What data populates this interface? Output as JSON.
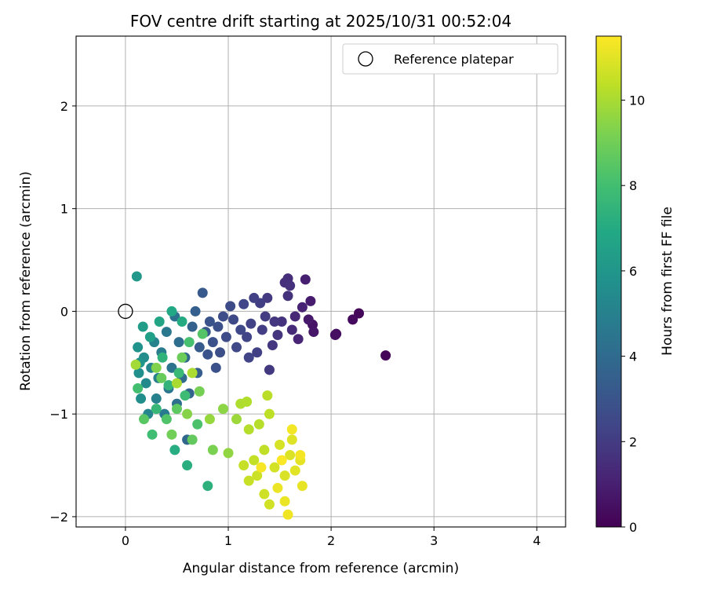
{
  "chart_data": {
    "type": "scatter",
    "title": "FOV centre drift starting at 2025/10/31 00:52:04",
    "xlabel": "Angular distance from reference (arcmin)",
    "ylabel": "Rotation from reference (arcmin)",
    "xlim": [
      -0.48,
      4.28
    ],
    "ylim": [
      -2.1,
      2.68
    ],
    "xticks": [
      "0",
      "1",
      "2",
      "3",
      "4"
    ],
    "yticks": [
      "−2",
      "−1",
      "0",
      "1",
      "2"
    ],
    "grid": true,
    "legend": {
      "position": "top-right",
      "entries": [
        "Reference platepar"
      ]
    },
    "reference_point": {
      "x": 0,
      "y": 0,
      "name": "Reference platepar"
    },
    "colorbar": {
      "label": "Hours from first FF file",
      "colormap": "viridis",
      "range": [
        0,
        11.5
      ],
      "ticks": [
        "0",
        "2",
        "4",
        "6",
        "8",
        "10"
      ]
    },
    "points": [
      {
        "x": 2.53,
        "y": -0.43,
        "h": 0.1
      },
      {
        "x": 2.27,
        "y": -0.02,
        "h": 0.2
      },
      {
        "x": 2.21,
        "y": -0.08,
        "h": 0.3
      },
      {
        "x": 2.05,
        "y": -0.22,
        "h": 0.4
      },
      {
        "x": 2.04,
        "y": -0.23,
        "h": 0.45
      },
      {
        "x": 1.82,
        "y": -0.13,
        "h": 0.6
      },
      {
        "x": 1.83,
        "y": -0.2,
        "h": 0.7
      },
      {
        "x": 1.78,
        "y": -0.08,
        "h": 0.8
      },
      {
        "x": 1.8,
        "y": 0.1,
        "h": 0.9
      },
      {
        "x": 1.75,
        "y": 0.31,
        "h": 1.0
      },
      {
        "x": 1.72,
        "y": 0.04,
        "h": 1.1
      },
      {
        "x": 1.68,
        "y": -0.27,
        "h": 1.2
      },
      {
        "x": 1.65,
        "y": -0.05,
        "h": 1.3
      },
      {
        "x": 1.62,
        "y": -0.18,
        "h": 1.4
      },
      {
        "x": 1.58,
        "y": 0.32,
        "h": 1.5
      },
      {
        "x": 1.55,
        "y": 0.28,
        "h": 1.55
      },
      {
        "x": 1.6,
        "y": 0.25,
        "h": 1.6
      },
      {
        "x": 1.58,
        "y": 0.15,
        "h": 1.65
      },
      {
        "x": 1.52,
        "y": -0.1,
        "h": 1.7
      },
      {
        "x": 1.48,
        "y": -0.23,
        "h": 1.75
      },
      {
        "x": 1.45,
        "y": -0.1,
        "h": 1.8
      },
      {
        "x": 1.43,
        "y": -0.33,
        "h": 1.85
      },
      {
        "x": 1.4,
        "y": -0.57,
        "h": 1.9
      },
      {
        "x": 1.38,
        "y": 0.13,
        "h": 1.95
      },
      {
        "x": 1.36,
        "y": -0.05,
        "h": 2.0
      },
      {
        "x": 1.33,
        "y": -0.18,
        "h": 2.05
      },
      {
        "x": 1.31,
        "y": 0.08,
        "h": 2.1
      },
      {
        "x": 1.28,
        "y": -0.4,
        "h": 2.15
      },
      {
        "x": 1.25,
        "y": 0.13,
        "h": 2.2
      },
      {
        "x": 1.22,
        "y": -0.12,
        "h": 2.25
      },
      {
        "x": 1.2,
        "y": -0.45,
        "h": 2.3
      },
      {
        "x": 1.18,
        "y": -0.25,
        "h": 2.35
      },
      {
        "x": 1.15,
        "y": 0.07,
        "h": 2.4
      },
      {
        "x": 1.12,
        "y": -0.18,
        "h": 2.45
      },
      {
        "x": 1.08,
        "y": -0.35,
        "h": 2.5
      },
      {
        "x": 1.05,
        "y": -0.08,
        "h": 2.55
      },
      {
        "x": 1.02,
        "y": 0.05,
        "h": 2.6
      },
      {
        "x": 0.98,
        "y": -0.25,
        "h": 2.65
      },
      {
        "x": 0.95,
        "y": -0.05,
        "h": 2.7
      },
      {
        "x": 0.92,
        "y": -0.4,
        "h": 2.75
      },
      {
        "x": 0.9,
        "y": -0.15,
        "h": 2.8
      },
      {
        "x": 0.88,
        "y": -0.55,
        "h": 2.85
      },
      {
        "x": 0.85,
        "y": -0.3,
        "h": 2.9
      },
      {
        "x": 0.82,
        "y": -0.1,
        "h": 2.95
      },
      {
        "x": 0.8,
        "y": -0.42,
        "h": 3.0
      },
      {
        "x": 0.78,
        "y": -0.2,
        "h": 3.1
      },
      {
        "x": 0.75,
        "y": 0.18,
        "h": 3.2
      },
      {
        "x": 0.72,
        "y": -0.35,
        "h": 3.3
      },
      {
        "x": 0.7,
        "y": -0.6,
        "h": 3.4
      },
      {
        "x": 0.68,
        "y": 0.0,
        "h": 3.5
      },
      {
        "x": 0.65,
        "y": -0.15,
        "h": 3.6
      },
      {
        "x": 0.62,
        "y": -0.8,
        "h": 3.7
      },
      {
        "x": 0.6,
        "y": -1.25,
        "h": 3.8
      },
      {
        "x": 0.58,
        "y": -0.45,
        "h": 3.9
      },
      {
        "x": 0.55,
        "y": -0.65,
        "h": 4.0
      },
      {
        "x": 0.52,
        "y": -0.3,
        "h": 4.1
      },
      {
        "x": 0.5,
        "y": -0.9,
        "h": 4.2
      },
      {
        "x": 0.48,
        "y": -0.05,
        "h": 4.3
      },
      {
        "x": 0.45,
        "y": -0.55,
        "h": 4.4
      },
      {
        "x": 0.42,
        "y": -0.75,
        "h": 4.5
      },
      {
        "x": 0.4,
        "y": -0.2,
        "h": 4.6
      },
      {
        "x": 0.38,
        "y": -1.0,
        "h": 4.7
      },
      {
        "x": 0.35,
        "y": -0.4,
        "h": 4.8
      },
      {
        "x": 0.32,
        "y": -0.65,
        "h": 4.9
      },
      {
        "x": 0.3,
        "y": -0.85,
        "h": 5.0
      },
      {
        "x": 0.28,
        "y": -0.3,
        "h": 5.1
      },
      {
        "x": 0.25,
        "y": -0.55,
        "h": 5.2
      },
      {
        "x": 0.22,
        "y": -1.0,
        "h": 5.3
      },
      {
        "x": 0.2,
        "y": -0.7,
        "h": 5.4
      },
      {
        "x": 0.18,
        "y": -0.45,
        "h": 5.5
      },
      {
        "x": 0.15,
        "y": -0.85,
        "h": 5.6
      },
      {
        "x": 0.13,
        "y": -0.6,
        "h": 5.7
      },
      {
        "x": 0.12,
        "y": -0.35,
        "h": 5.8
      },
      {
        "x": 0.14,
        "y": -0.5,
        "h": 5.9
      },
      {
        "x": 0.11,
        "y": 0.34,
        "h": 6.1
      },
      {
        "x": 0.17,
        "y": -0.15,
        "h": 6.3
      },
      {
        "x": 0.24,
        "y": -0.25,
        "h": 6.5
      },
      {
        "x": 0.33,
        "y": -0.1,
        "h": 6.7
      },
      {
        "x": 0.45,
        "y": 0.0,
        "h": 6.9
      },
      {
        "x": 0.55,
        "y": -0.1,
        "h": 7.0
      },
      {
        "x": 0.48,
        "y": -1.35,
        "h": 7.1
      },
      {
        "x": 0.6,
        "y": -1.5,
        "h": 7.2
      },
      {
        "x": 0.8,
        "y": -1.7,
        "h": 7.3
      },
      {
        "x": 0.36,
        "y": -0.45,
        "h": 7.4
      },
      {
        "x": 0.42,
        "y": -0.72,
        "h": 7.5
      },
      {
        "x": 0.3,
        "y": -0.95,
        "h": 7.6
      },
      {
        "x": 0.52,
        "y": -0.6,
        "h": 7.7
      },
      {
        "x": 0.58,
        "y": -0.82,
        "h": 7.8
      },
      {
        "x": 0.26,
        "y": -1.2,
        "h": 7.9
      },
      {
        "x": 0.12,
        "y": -0.75,
        "h": 8.0
      },
      {
        "x": 0.62,
        "y": -0.3,
        "h": 8.1
      },
      {
        "x": 0.7,
        "y": -1.1,
        "h": 8.2
      },
      {
        "x": 0.4,
        "y": -1.05,
        "h": 8.3
      },
      {
        "x": 0.75,
        "y": -0.22,
        "h": 8.4
      },
      {
        "x": 0.18,
        "y": -1.05,
        "h": 8.5
      },
      {
        "x": 0.5,
        "y": -0.95,
        "h": 8.6
      },
      {
        "x": 0.65,
        "y": -1.25,
        "h": 8.7
      },
      {
        "x": 0.35,
        "y": -0.65,
        "h": 8.8
      },
      {
        "x": 0.55,
        "y": -0.45,
        "h": 8.9
      },
      {
        "x": 0.45,
        "y": -1.2,
        "h": 9.0
      },
      {
        "x": 0.72,
        "y": -0.78,
        "h": 9.1
      },
      {
        "x": 0.85,
        "y": -1.35,
        "h": 9.2
      },
      {
        "x": 0.3,
        "y": -0.55,
        "h": 9.3
      },
      {
        "x": 0.6,
        "y": -1.0,
        "h": 9.4
      },
      {
        "x": 0.95,
        "y": -0.95,
        "h": 9.5
      },
      {
        "x": 1.0,
        "y": -1.38,
        "h": 9.6
      },
      {
        "x": 0.82,
        "y": -1.05,
        "h": 9.7
      },
      {
        "x": 1.08,
        "y": -1.05,
        "h": 9.8
      },
      {
        "x": 0.1,
        "y": -0.52,
        "h": 9.9
      },
      {
        "x": 0.5,
        "y": -0.7,
        "h": 10.0
      },
      {
        "x": 0.65,
        "y": -0.6,
        "h": 10.05
      },
      {
        "x": 1.12,
        "y": -0.9,
        "h": 10.1
      },
      {
        "x": 1.18,
        "y": -0.88,
        "h": 10.15
      },
      {
        "x": 1.2,
        "y": -1.15,
        "h": 10.2
      },
      {
        "x": 1.3,
        "y": -1.1,
        "h": 10.25
      },
      {
        "x": 1.38,
        "y": -0.82,
        "h": 10.3
      },
      {
        "x": 1.4,
        "y": -1.0,
        "h": 10.35
      },
      {
        "x": 1.35,
        "y": -1.35,
        "h": 10.4
      },
      {
        "x": 1.25,
        "y": -1.45,
        "h": 10.45
      },
      {
        "x": 1.15,
        "y": -1.5,
        "h": 10.5
      },
      {
        "x": 1.2,
        "y": -1.65,
        "h": 10.55
      },
      {
        "x": 1.28,
        "y": -1.6,
        "h": 10.6
      },
      {
        "x": 1.35,
        "y": -1.78,
        "h": 10.65
      },
      {
        "x": 1.4,
        "y": -1.88,
        "h": 10.7
      },
      {
        "x": 1.45,
        "y": -1.52,
        "h": 10.75
      },
      {
        "x": 1.5,
        "y": -1.3,
        "h": 10.8
      },
      {
        "x": 1.55,
        "y": -1.6,
        "h": 10.85
      },
      {
        "x": 1.6,
        "y": -1.4,
        "h": 10.9
      },
      {
        "x": 1.62,
        "y": -1.25,
        "h": 10.95
      },
      {
        "x": 1.65,
        "y": -1.55,
        "h": 11.0
      },
      {
        "x": 1.7,
        "y": -1.45,
        "h": 11.05
      },
      {
        "x": 1.72,
        "y": -1.7,
        "h": 11.1
      },
      {
        "x": 1.55,
        "y": -1.85,
        "h": 11.15
      },
      {
        "x": 1.48,
        "y": -1.72,
        "h": 11.2
      },
      {
        "x": 1.58,
        "y": -1.98,
        "h": 11.25
      },
      {
        "x": 1.62,
        "y": -1.15,
        "h": 11.3
      },
      {
        "x": 1.7,
        "y": -1.4,
        "h": 11.35
      },
      {
        "x": 1.32,
        "y": -1.52,
        "h": 11.4
      },
      {
        "x": 1.52,
        "y": -1.45,
        "h": 11.45
      }
    ]
  }
}
